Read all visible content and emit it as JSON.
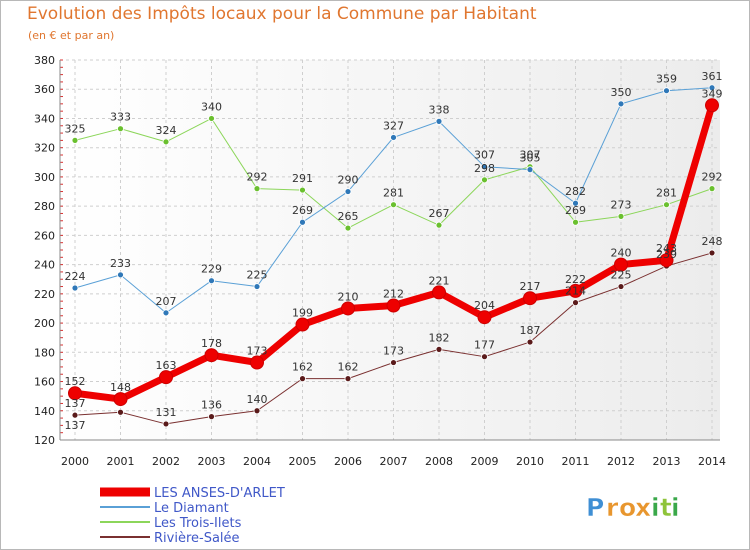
{
  "header": {
    "title": "Evolution des Impôts locaux pour la Commune par Habitant",
    "subtitle": "(en € et par an)"
  },
  "logo": {
    "letters": [
      "P",
      "r",
      "o",
      "x",
      "i",
      "t",
      "i"
    ],
    "colors": [
      "#3f8fd4",
      "#e8962e",
      "#e8962e",
      "#e8962e",
      "#3aa84a",
      "#8fc43a",
      "#3aa84a"
    ]
  },
  "chart_data": {
    "type": "line",
    "title": "Evolution des Impôts locaux pour la Commune par Habitant",
    "subtitle": "(en € et par an)",
    "xlabel": "",
    "ylabel": "",
    "x": [
      "2000",
      "2001",
      "2002",
      "2003",
      "2004",
      "2005",
      "2006",
      "2007",
      "2008",
      "2009",
      "2010",
      "2011",
      "2012",
      "2013",
      "2014"
    ],
    "ylim": [
      120,
      380
    ],
    "yticks": [
      120,
      140,
      160,
      180,
      200,
      220,
      240,
      260,
      280,
      300,
      320,
      340,
      360,
      380
    ],
    "grid": true,
    "legend_position": "bottom-left",
    "series": [
      {
        "name": "Rivière-Salée",
        "color": "#7a3030",
        "marker": "#5a1a1a",
        "width": 1,
        "values": [
          137,
          139,
          131,
          136,
          140,
          162,
          162,
          173,
          182,
          177,
          187,
          214,
          225,
          239,
          248
        ],
        "labels": [
          "137",
          "",
          "131",
          "136",
          "140",
          "162",
          "162",
          "173",
          "182",
          "177",
          "187",
          "",
          "225",
          "",
          "248"
        ]
      },
      {
        "name": "Les Trois-Ilets",
        "color": "#8cd65a",
        "marker": "#6ac02e",
        "width": 1,
        "values": [
          325,
          333,
          324,
          340,
          292,
          291,
          265,
          281,
          267,
          298,
          307,
          269,
          273,
          281,
          292
        ],
        "labels": [
          "325",
          "333",
          "324",
          "340",
          "292",
          "291",
          "265",
          "281",
          "267",
          "298",
          "307",
          "269",
          "273",
          "281",
          "292"
        ]
      },
      {
        "name": "Le Diamant",
        "color": "#5aa0d6",
        "marker": "#2f78b8",
        "width": 1,
        "values": [
          224,
          233,
          207,
          229,
          225,
          269,
          290,
          327,
          338,
          307,
          305,
          282,
          350,
          359,
          361
        ],
        "labels": [
          "224",
          "233",
          "207",
          "229",
          "225",
          "269",
          "290",
          "327",
          "338",
          "307",
          "305",
          "282",
          "350",
          "359",
          "361"
        ]
      },
      {
        "name": "LES ANSES-D'ARLET",
        "color": "#ee0000",
        "marker": "#ee0000",
        "width": 7,
        "values": [
          152,
          148,
          163,
          178,
          173,
          199,
          210,
          212,
          221,
          204,
          217,
          222,
          240,
          243,
          349
        ],
        "labels": [
          "152",
          "148",
          "163",
          "178",
          "173",
          "199",
          "210",
          "212",
          "221",
          "204",
          "217",
          "222",
          "240",
          "243",
          "349"
        ]
      }
    ],
    "extra_labels": [
      "137",
      "214",
      "239"
    ],
    "legend": [
      "LES ANSES-D'ARLET",
      "Le Diamant",
      "Les Trois-Ilets",
      "Rivière-Salée"
    ]
  }
}
